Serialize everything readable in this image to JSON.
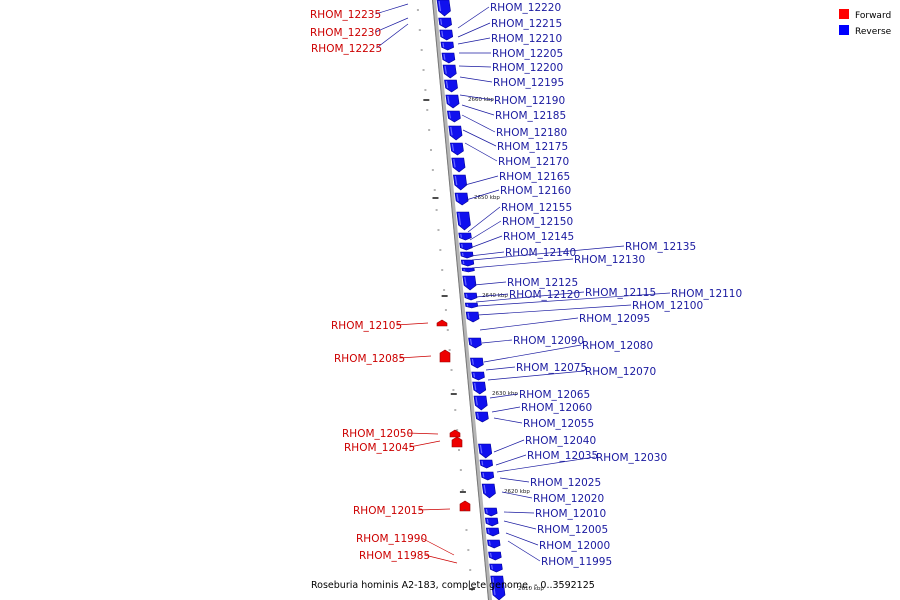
{
  "legend": {
    "items": [
      {
        "label": "Forward",
        "color": "#ff0000"
      },
      {
        "label": "Reverse",
        "color": "#0000ff"
      }
    ]
  },
  "caption": "Roseburia hominis A2-183, complete genome. - 0..3592125",
  "colors": {
    "forward": "#ff0000",
    "reverse": "#0000ff",
    "forward_text": "#cc0000",
    "reverse_text": "#1a1aa0",
    "backbone": "#999999"
  },
  "chart_data": {
    "type": "genome-map",
    "ticks": [
      "2660 kbp",
      "2650 kbp",
      "2640 kbp",
      "2630 kbp",
      "2620 kbp",
      "2610 kbp"
    ],
    "forward_genes": [
      "RHOM_12235",
      "RHOM_12230",
      "RHOM_12225",
      "RHOM_12105",
      "RHOM_12085",
      "RHOM_12050",
      "RHOM_12045",
      "RHOM_12015",
      "RHOM_11990",
      "RHOM_11985"
    ],
    "reverse_genes": [
      "RHOM_12220",
      "RHOM_12215",
      "RHOM_12210",
      "RHOM_12205",
      "RHOM_12200",
      "RHOM_12195",
      "RHOM_12190",
      "RHOM_12185",
      "RHOM_12180",
      "RHOM_12175",
      "RHOM_12170",
      "RHOM_12165",
      "RHOM_12160",
      "RHOM_12155",
      "RHOM_12150",
      "RHOM_12145",
      "RHOM_12140",
      "RHOM_12135",
      "RHOM_12130",
      "RHOM_12125",
      "RHOM_12120",
      "RHOM_12115",
      "RHOM_12110",
      "RHOM_12100",
      "RHOM_12095",
      "RHOM_12090",
      "RHOM_12080",
      "RHOM_12075",
      "RHOM_12070",
      "RHOM_12065",
      "RHOM_12060",
      "RHOM_12055",
      "RHOM_12040",
      "RHOM_12035",
      "RHOM_12030",
      "RHOM_12025",
      "RHOM_12020",
      "RHOM_12010",
      "RHOM_12005",
      "RHOM_12000",
      "RHOM_11995"
    ]
  }
}
